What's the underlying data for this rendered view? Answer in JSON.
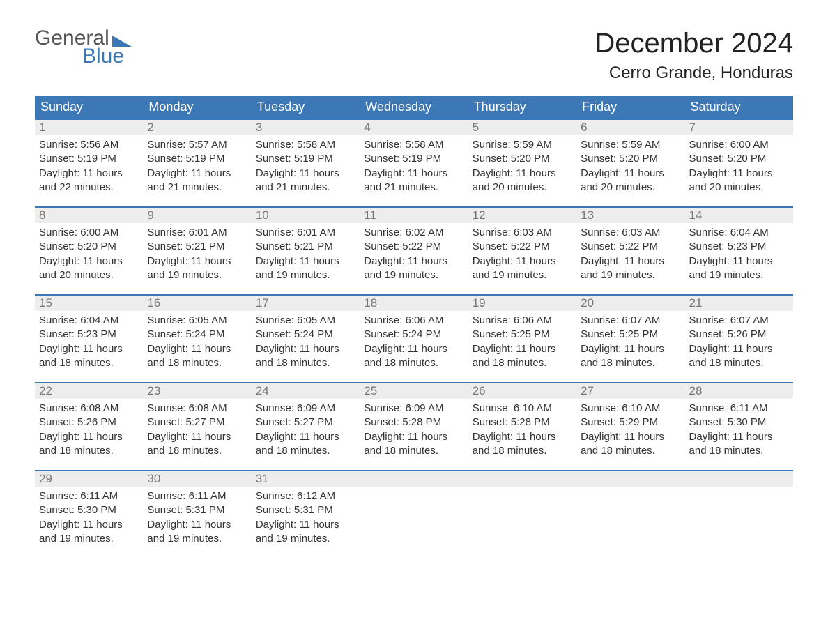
{
  "logo": {
    "line1": "General",
    "line2": "Blue"
  },
  "title": "December 2024",
  "location": "Cerro Grande, Honduras",
  "colors": {
    "brand_blue": "#3b78b5",
    "header_text": "#ffffff",
    "daynum_bg": "#ededed",
    "daynum_text": "#777777",
    "body_text": "#333333",
    "page_bg": "#ffffff"
  },
  "weekdays": [
    "Sunday",
    "Monday",
    "Tuesday",
    "Wednesday",
    "Thursday",
    "Friday",
    "Saturday"
  ],
  "labels": {
    "sunrise": "Sunrise: ",
    "sunset": "Sunset: ",
    "daylight": "Daylight: ",
    "hours_word": " hours",
    "and_word": "and ",
    "minutes_word": " minutes."
  },
  "weeks": [
    [
      {
        "day": 1,
        "sunrise": "5:56 AM",
        "sunset": "5:19 PM",
        "dl_h": 11,
        "dl_m": 22
      },
      {
        "day": 2,
        "sunrise": "5:57 AM",
        "sunset": "5:19 PM",
        "dl_h": 11,
        "dl_m": 21
      },
      {
        "day": 3,
        "sunrise": "5:58 AM",
        "sunset": "5:19 PM",
        "dl_h": 11,
        "dl_m": 21
      },
      {
        "day": 4,
        "sunrise": "5:58 AM",
        "sunset": "5:19 PM",
        "dl_h": 11,
        "dl_m": 21
      },
      {
        "day": 5,
        "sunrise": "5:59 AM",
        "sunset": "5:20 PM",
        "dl_h": 11,
        "dl_m": 20
      },
      {
        "day": 6,
        "sunrise": "5:59 AM",
        "sunset": "5:20 PM",
        "dl_h": 11,
        "dl_m": 20
      },
      {
        "day": 7,
        "sunrise": "6:00 AM",
        "sunset": "5:20 PM",
        "dl_h": 11,
        "dl_m": 20
      }
    ],
    [
      {
        "day": 8,
        "sunrise": "6:00 AM",
        "sunset": "5:20 PM",
        "dl_h": 11,
        "dl_m": 20
      },
      {
        "day": 9,
        "sunrise": "6:01 AM",
        "sunset": "5:21 PM",
        "dl_h": 11,
        "dl_m": 19
      },
      {
        "day": 10,
        "sunrise": "6:01 AM",
        "sunset": "5:21 PM",
        "dl_h": 11,
        "dl_m": 19
      },
      {
        "day": 11,
        "sunrise": "6:02 AM",
        "sunset": "5:22 PM",
        "dl_h": 11,
        "dl_m": 19
      },
      {
        "day": 12,
        "sunrise": "6:03 AM",
        "sunset": "5:22 PM",
        "dl_h": 11,
        "dl_m": 19
      },
      {
        "day": 13,
        "sunrise": "6:03 AM",
        "sunset": "5:22 PM",
        "dl_h": 11,
        "dl_m": 19
      },
      {
        "day": 14,
        "sunrise": "6:04 AM",
        "sunset": "5:23 PM",
        "dl_h": 11,
        "dl_m": 19
      }
    ],
    [
      {
        "day": 15,
        "sunrise": "6:04 AM",
        "sunset": "5:23 PM",
        "dl_h": 11,
        "dl_m": 18
      },
      {
        "day": 16,
        "sunrise": "6:05 AM",
        "sunset": "5:24 PM",
        "dl_h": 11,
        "dl_m": 18
      },
      {
        "day": 17,
        "sunrise": "6:05 AM",
        "sunset": "5:24 PM",
        "dl_h": 11,
        "dl_m": 18
      },
      {
        "day": 18,
        "sunrise": "6:06 AM",
        "sunset": "5:24 PM",
        "dl_h": 11,
        "dl_m": 18
      },
      {
        "day": 19,
        "sunrise": "6:06 AM",
        "sunset": "5:25 PM",
        "dl_h": 11,
        "dl_m": 18
      },
      {
        "day": 20,
        "sunrise": "6:07 AM",
        "sunset": "5:25 PM",
        "dl_h": 11,
        "dl_m": 18
      },
      {
        "day": 21,
        "sunrise": "6:07 AM",
        "sunset": "5:26 PM",
        "dl_h": 11,
        "dl_m": 18
      }
    ],
    [
      {
        "day": 22,
        "sunrise": "6:08 AM",
        "sunset": "5:26 PM",
        "dl_h": 11,
        "dl_m": 18
      },
      {
        "day": 23,
        "sunrise": "6:08 AM",
        "sunset": "5:27 PM",
        "dl_h": 11,
        "dl_m": 18
      },
      {
        "day": 24,
        "sunrise": "6:09 AM",
        "sunset": "5:27 PM",
        "dl_h": 11,
        "dl_m": 18
      },
      {
        "day": 25,
        "sunrise": "6:09 AM",
        "sunset": "5:28 PM",
        "dl_h": 11,
        "dl_m": 18
      },
      {
        "day": 26,
        "sunrise": "6:10 AM",
        "sunset": "5:28 PM",
        "dl_h": 11,
        "dl_m": 18
      },
      {
        "day": 27,
        "sunrise": "6:10 AM",
        "sunset": "5:29 PM",
        "dl_h": 11,
        "dl_m": 18
      },
      {
        "day": 28,
        "sunrise": "6:11 AM",
        "sunset": "5:30 PM",
        "dl_h": 11,
        "dl_m": 18
      }
    ],
    [
      {
        "day": 29,
        "sunrise": "6:11 AM",
        "sunset": "5:30 PM",
        "dl_h": 11,
        "dl_m": 19
      },
      {
        "day": 30,
        "sunrise": "6:11 AM",
        "sunset": "5:31 PM",
        "dl_h": 11,
        "dl_m": 19
      },
      {
        "day": 31,
        "sunrise": "6:12 AM",
        "sunset": "5:31 PM",
        "dl_h": 11,
        "dl_m": 19
      },
      null,
      null,
      null,
      null
    ]
  ]
}
